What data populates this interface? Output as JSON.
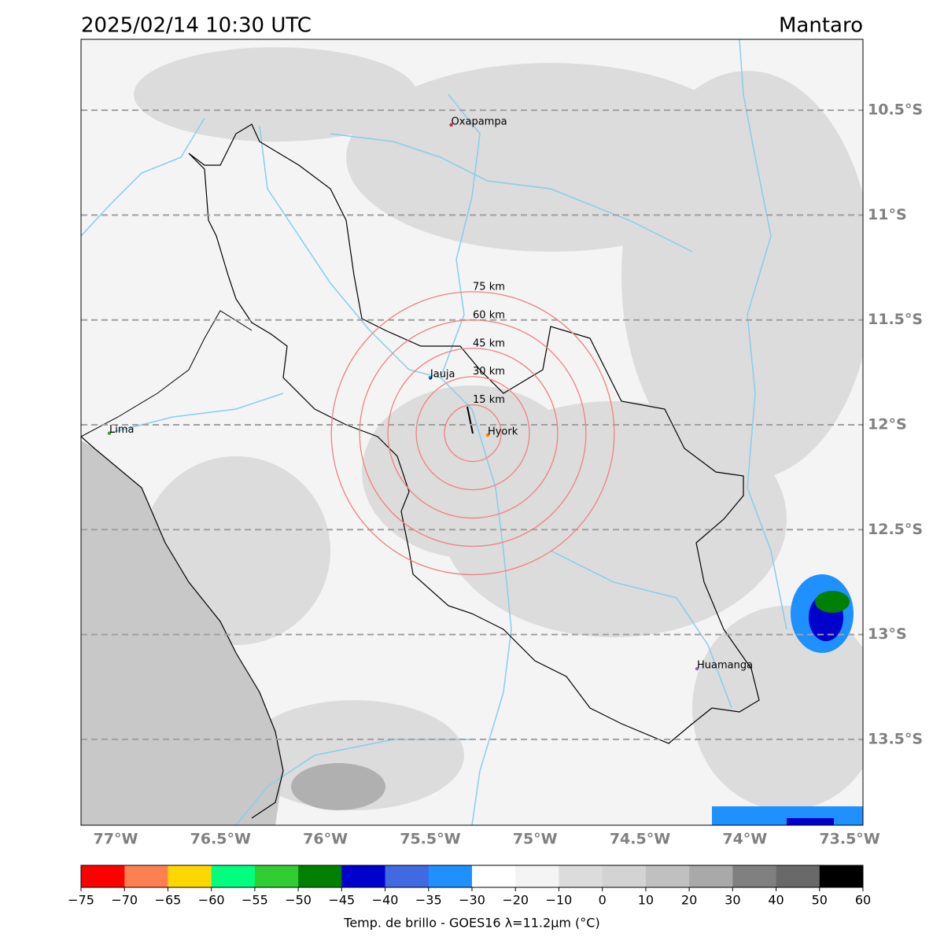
{
  "map": {
    "title": "2025/02/14 10:30 UTC",
    "region": "Mantaro",
    "lat_ticks": [
      {
        "value": -10.5,
        "label": "10.5°S"
      },
      {
        "value": -11,
        "label": "11°S"
      },
      {
        "value": -11.5,
        "label": "11.5°S"
      },
      {
        "value": -12,
        "label": "12°S"
      },
      {
        "value": -12.5,
        "label": "12.5°S"
      },
      {
        "value": -13,
        "label": "13°S"
      },
      {
        "value": -13.5,
        "label": "13.5°S"
      }
    ],
    "lon_ticks": [
      {
        "value": -77,
        "label": "77°W"
      },
      {
        "value": -76.5,
        "label": "76.5°W"
      },
      {
        "value": -76,
        "label": "76°W"
      },
      {
        "value": -75.5,
        "label": "75.5°W"
      },
      {
        "value": -75,
        "label": "75°W"
      },
      {
        "value": -74.5,
        "label": "74.5°W"
      },
      {
        "value": -74,
        "label": "74°W"
      },
      {
        "value": -73.5,
        "label": "73.5°W"
      }
    ],
    "cities": [
      {
        "name": "Oxapampa",
        "lon": -75.4,
        "lat": -10.57,
        "color": "#d62728"
      },
      {
        "name": "Jauja",
        "lon": -75.5,
        "lat": -11.775,
        "color": "#1f77b4"
      },
      {
        "name": "Hyork",
        "lon": -75.226,
        "lat": -12.049,
        "color": "#ff7f0e"
      },
      {
        "name": "Lima",
        "lon": -77.03,
        "lat": -12.04,
        "color": "#2ca02c"
      },
      {
        "name": "Huamanga",
        "lon": -74.228,
        "lat": -13.163,
        "color": "#9467bd"
      }
    ],
    "rings": {
      "lon": -75.297,
      "lat": -12.04,
      "color": "#f08080",
      "radii": [
        15,
        30,
        45,
        60,
        75
      ],
      "labels": [
        "15 km",
        "30 km",
        "45 km",
        "60 km",
        "75 km"
      ]
    }
  },
  "colorbar": {
    "label": "Temp. de brillo - GOES16 λ=11.2μm (°C)",
    "bounds": [
      {
        "value": -75,
        "label": "−75"
      },
      {
        "value": -70,
        "label": "−70"
      },
      {
        "value": -65,
        "label": "−65"
      },
      {
        "value": -60,
        "label": "−60"
      },
      {
        "value": -55,
        "label": "−55"
      },
      {
        "value": -50,
        "label": "−50"
      },
      {
        "value": -45,
        "label": "−45"
      },
      {
        "value": -40,
        "label": "−40"
      },
      {
        "value": -35,
        "label": "−35"
      },
      {
        "value": -30,
        "label": "−30"
      },
      {
        "value": -20,
        "label": "−20"
      },
      {
        "value": -10,
        "label": "−10"
      },
      0,
      10,
      20,
      30,
      40,
      50,
      60
    ],
    "colors": [
      "#ff0000",
      "#ff7f50",
      "#ffd700",
      "#00ff7f",
      "#32cd32",
      "#008000",
      "#0000cd",
      "#4169e1",
      "#1e90ff",
      "#ffffff",
      "#f4f4f4",
      "#dcdcdc",
      "#d3d3d3",
      "#c0c0c0",
      "#a9a9a9",
      "#808080",
      "#696969",
      "#000000"
    ]
  }
}
